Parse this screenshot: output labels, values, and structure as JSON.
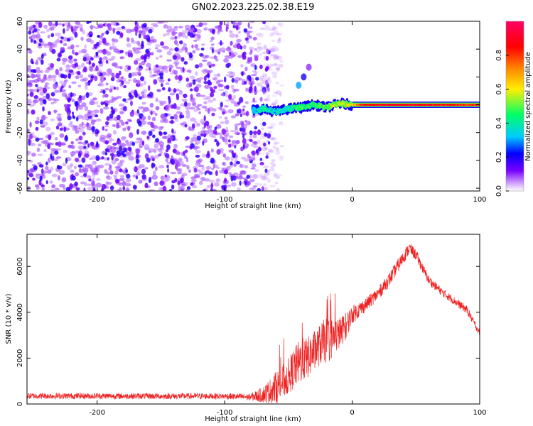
{
  "title": "GN02.2023.225.02.38.E19",
  "chart_data": [
    {
      "type": "heatmap",
      "xlabel": "Height of straight line (km)",
      "ylabel": "Frequency (Hz)",
      "xlim": [
        -255,
        100
      ],
      "ylim": [
        -62,
        60
      ],
      "xticks": [
        -200,
        -100,
        0,
        100
      ],
      "yticks": [
        60,
        40,
        20,
        0,
        -20,
        -40,
        -60
      ],
      "colorbar": {
        "label": "Normalized spectral amplitude",
        "range": [
          0,
          1
        ],
        "ticks": [
          0.0,
          0.2,
          0.4,
          0.6,
          0.8
        ],
        "colors": [
          "#ffffff",
          "#cc99ff",
          "#7700ff",
          "#0000ff",
          "#00ccff",
          "#00ff66",
          "#ffee00",
          "#ff8800",
          "#ff0000",
          "#ff0066"
        ]
      },
      "noise_region": {
        "x": [
          -255,
          -65
        ],
        "y": [
          -62,
          60
        ],
        "amplitude": [
          0.05,
          0.2
        ]
      },
      "signal_track": [
        {
          "x": -78,
          "y": -4,
          "amp": 0.3
        },
        {
          "x": -70,
          "y": -3,
          "amp": 0.4
        },
        {
          "x": -60,
          "y": -5,
          "amp": 0.35
        },
        {
          "x": -50,
          "y": -3,
          "amp": 0.4
        },
        {
          "x": -40,
          "y": -2,
          "amp": 0.45
        },
        {
          "x": -30,
          "y": 0,
          "amp": 0.45
        },
        {
          "x": -20,
          "y": -2,
          "amp": 0.5
        },
        {
          "x": -10,
          "y": 1,
          "amp": 0.55
        },
        {
          "x": 0,
          "y": 0,
          "amp": 0.6
        },
        {
          "x": 10,
          "y": 0,
          "amp": 0.85
        },
        {
          "x": 40,
          "y": 0,
          "amp": 0.9
        },
        {
          "x": 70,
          "y": 0,
          "amp": 0.85
        },
        {
          "x": 100,
          "y": 0,
          "amp": 0.8
        }
      ],
      "secondary_feature": [
        {
          "x": -42,
          "y": 14,
          "amp": 0.3
        },
        {
          "x": -38,
          "y": 20,
          "amp": 0.2
        },
        {
          "x": -34,
          "y": 27,
          "amp": 0.1
        }
      ]
    },
    {
      "type": "line",
      "xlabel": "Height of straight line (km)",
      "ylabel": "SNR (10 * v/v)",
      "xlim": [
        -255,
        100
      ],
      "ylim": [
        0,
        7400
      ],
      "xticks": [
        -200,
        -100,
        0,
        100
      ],
      "yticks": [
        0,
        2000,
        4000,
        6000
      ],
      "color": "#ee2222",
      "x": [
        -255,
        -200,
        -150,
        -100,
        -80,
        -70,
        -60,
        -50,
        -45,
        -40,
        -35,
        -30,
        -25,
        -20,
        -15,
        -10,
        -5,
        0,
        10,
        20,
        30,
        40,
        45,
        50,
        60,
        70,
        80,
        90,
        100
      ],
      "y": [
        350,
        350,
        340,
        340,
        300,
        400,
        700,
        1200,
        1600,
        1900,
        2000,
        2300,
        2600,
        2800,
        2900,
        3100,
        3400,
        3900,
        4300,
        4800,
        5500,
        6400,
        6800,
        6500,
        5400,
        4900,
        4500,
        4100,
        3100
      ],
      "noise_amplitude": [
        130,
        130,
        130,
        130,
        150,
        350,
        700,
        800,
        900,
        1000,
        900,
        900,
        900,
        1000,
        900,
        700,
        600,
        400,
        300,
        300,
        300,
        300,
        250,
        250,
        200,
        180,
        180,
        180,
        150
      ]
    }
  ]
}
